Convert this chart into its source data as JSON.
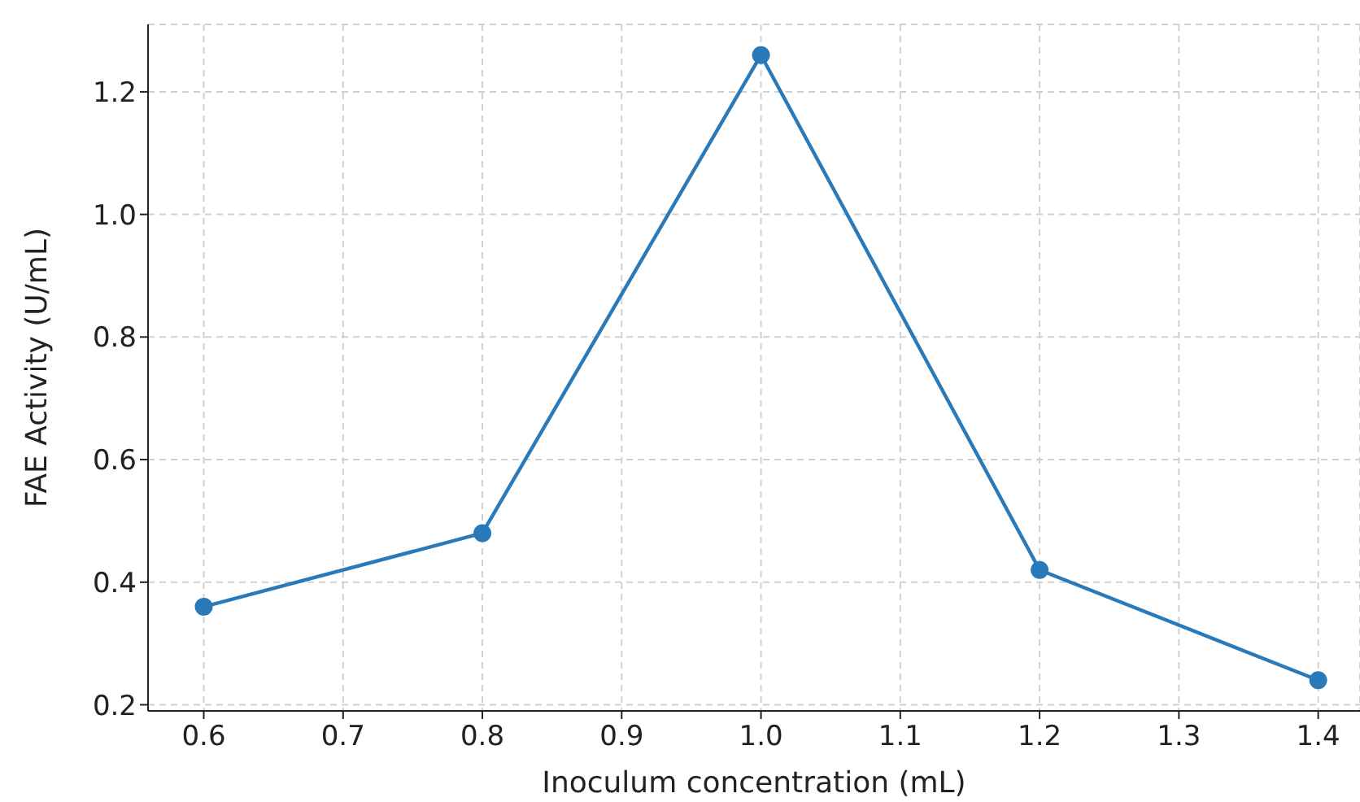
{
  "chart_data": {
    "type": "line",
    "xlabel": "Inoculum concentration (mL)",
    "ylabel": "FAE Activity (U/mL)",
    "x": [
      0.6,
      0.8,
      1.0,
      1.2,
      1.4
    ],
    "series": [
      {
        "color": "#2a7ab9",
        "values": [
          0.36,
          0.48,
          1.26,
          0.42,
          0.24
        ]
      }
    ],
    "xlim": [
      0.56,
      1.43
    ],
    "xticks": [
      0.6,
      0.7,
      0.8,
      0.9,
      {
        "value": 1,
        "label": "1.0"
      },
      1.1,
      1.2,
      1.3,
      1.4
    ],
    "ylim": [
      0.19,
      1.31
    ],
    "yticks": [
      0.2,
      0.4,
      0.6,
      0.8,
      {
        "value": 1,
        "label": "1.0"
      },
      1.2
    ],
    "grid": true,
    "marker": "circle",
    "line_style": "solid",
    "legend": false
  }
}
